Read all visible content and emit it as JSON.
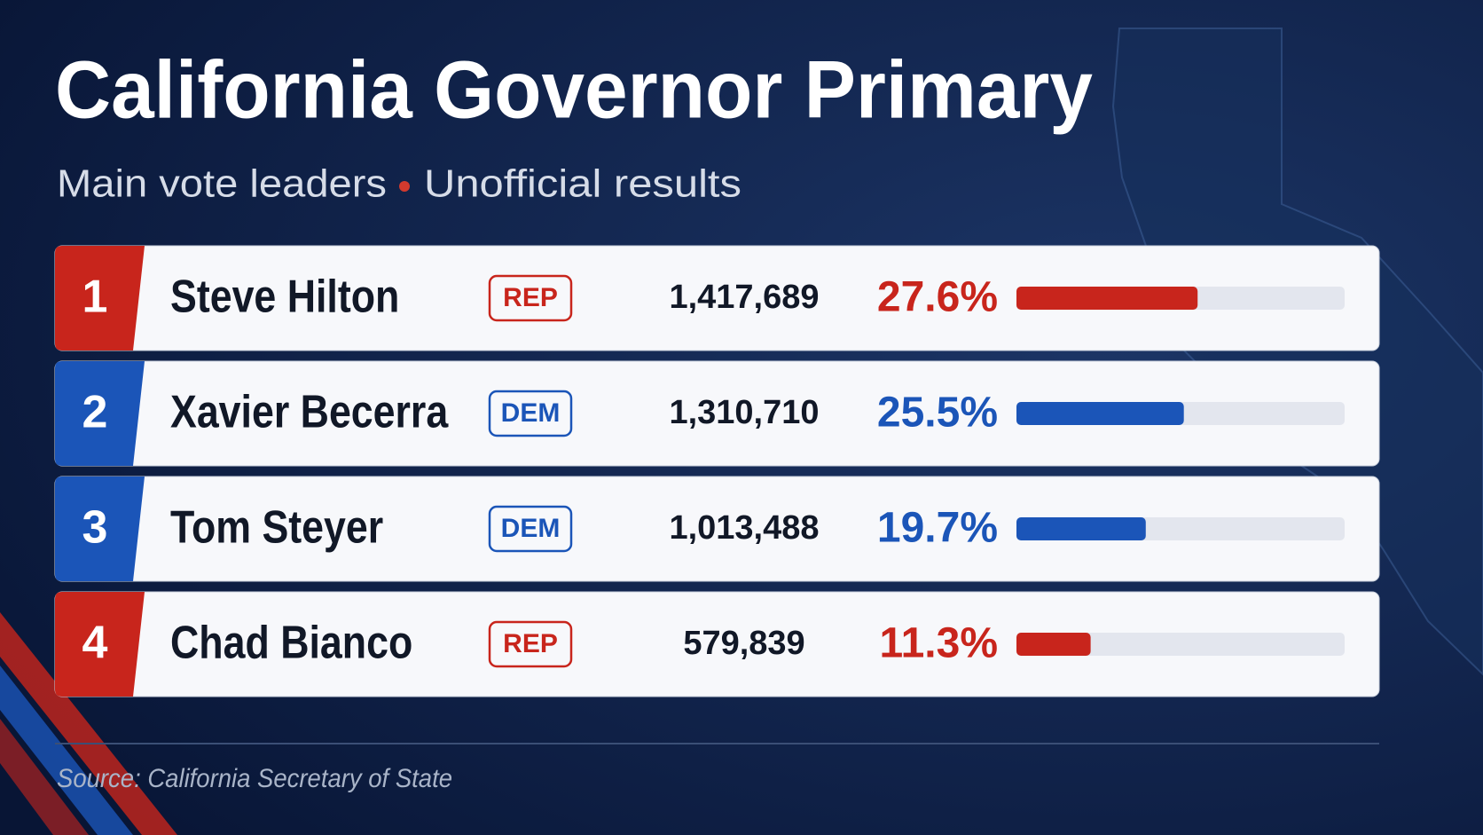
{
  "chart_data": {
    "type": "bar",
    "title": "California Governor Primary",
    "subtitle": [
      "Main vote leaders",
      "Unofficial results"
    ],
    "categories": [
      "Steve Hilton",
      "Xavier Becerra",
      "Tom Steyer",
      "Chad Bianco"
    ],
    "ranks": [
      1,
      2,
      3,
      4
    ],
    "parties": [
      "REP",
      "DEM",
      "DEM",
      "REP"
    ],
    "votes": [
      "1,417,689",
      "1,310,710",
      "1,013,488",
      "579,839"
    ],
    "values": [
      27.6,
      25.5,
      19.7,
      11.3
    ],
    "value_labels": [
      "27.6%",
      "25.5%",
      "19.7%",
      "11.3%"
    ],
    "colors": [
      "#c8251c",
      "#1b55b8",
      "#1b55b8",
      "#c8251c"
    ],
    "xlim": [
      0,
      50
    ],
    "source": "Source: California Secretary of State"
  }
}
